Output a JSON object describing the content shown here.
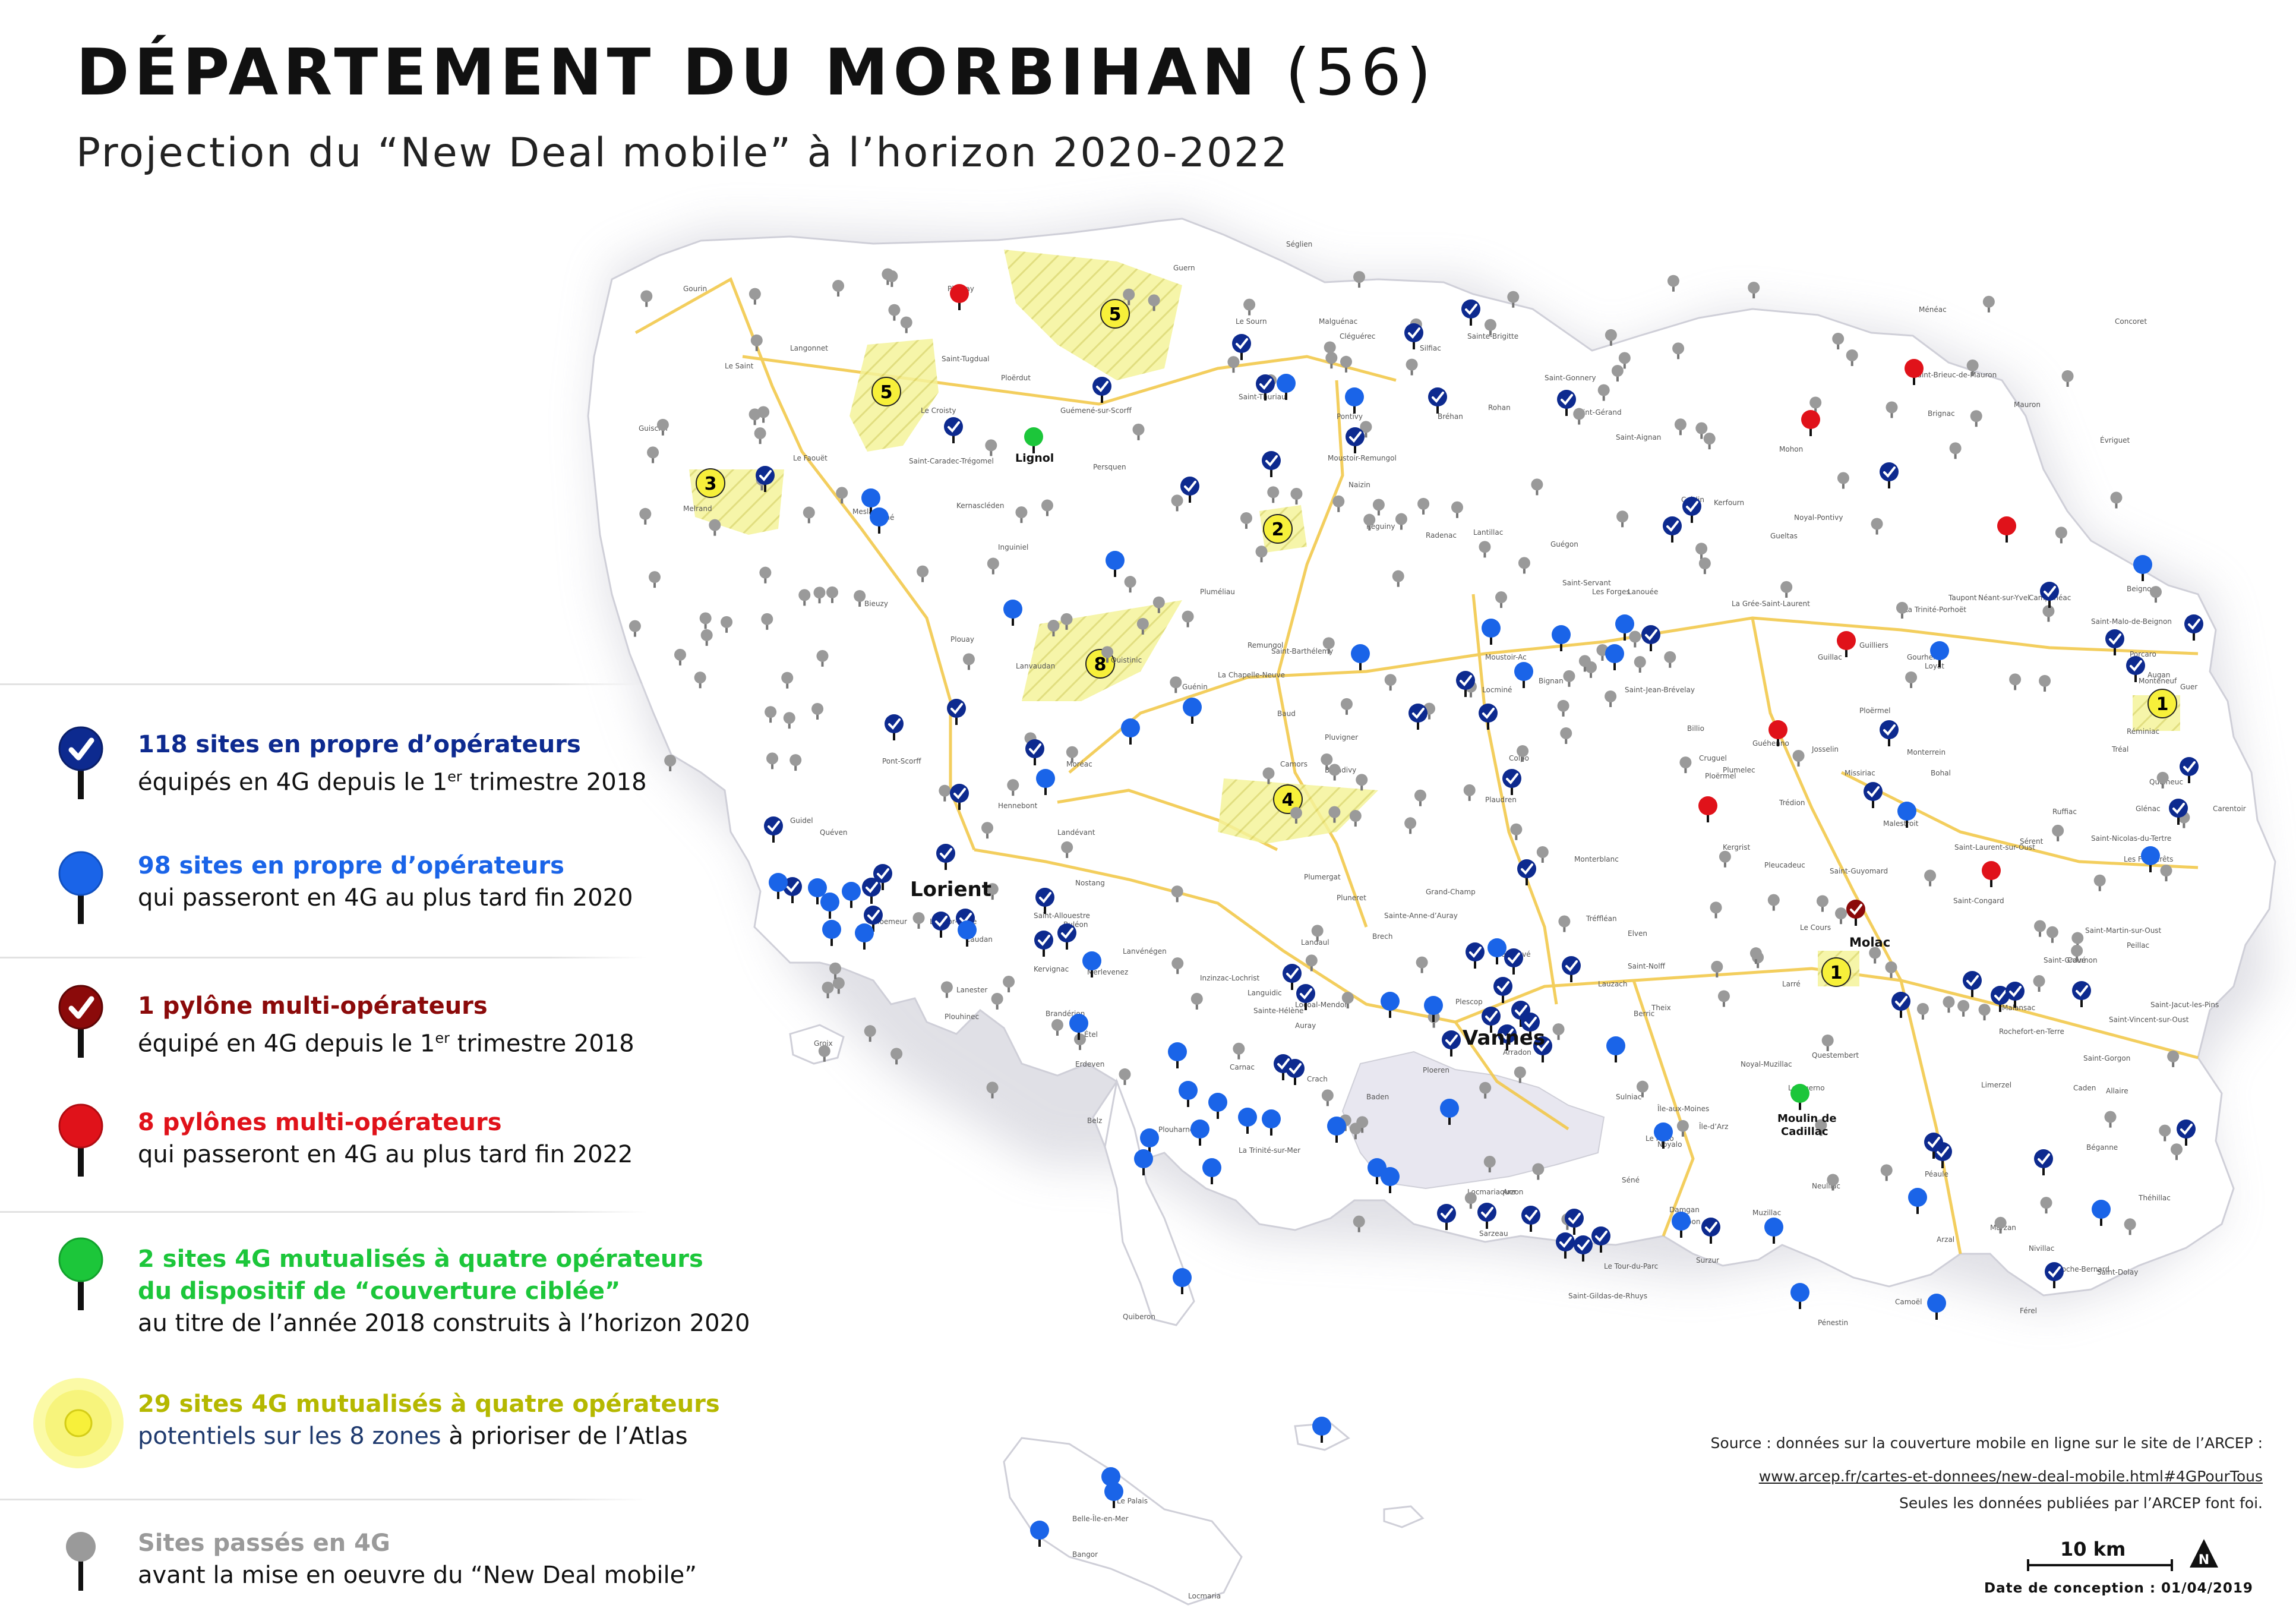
{
  "header": {
    "title_bold": "DÉPARTEMENT DU MORBIHAN",
    "title_num": "(56)",
    "subtitle": "Projection du “New Deal mobile” à l’horizon 2020-2022"
  },
  "legend": [
    {
      "key": "own-4g",
      "color": "#0d2a8f",
      "heading": "118 sites en propre d’opérateurs",
      "line1": "équipés en 4G depuis le 1",
      "sup": "er",
      "line1_end": " trimestre 2018"
    },
    {
      "key": "own-2020",
      "color": "#1a64e8",
      "heading": "98 sites en propre d’opérateurs",
      "line1": "qui passeront en 4G au plus tard fin 2020"
    },
    {
      "key": "multi-4g",
      "color": "#8b0a0a",
      "heading": "1 pylône multi-opérateurs",
      "line1": "équipé en 4G depuis le 1",
      "sup": "er",
      "line1_end": " trimestre 2018"
    },
    {
      "key": "multi-2022",
      "color": "#e0121a",
      "heading": "8 pylônes multi-opérateurs",
      "line1": "qui passeront en 4G au plus tard fin 2022"
    },
    {
      "key": "ciblee",
      "color": "#1cc63a",
      "heading": "2 sites 4G mutualisés à quatre opérateurs",
      "heading2": "du dispositif de “couverture ciblée”",
      "line1": "au titre de l’année 2018 construits à l’horizon 2020"
    },
    {
      "key": "zones",
      "color": "#b5b800",
      "heading": "29 sites 4G mutualisés à quatre opérateurs",
      "line1a": "potentiels sur les 8 zones",
      "line1b": " à prioriser de l’Atlas"
    },
    {
      "key": "passes",
      "color": "#9a9a9a",
      "heading": "Sites passés en 4G",
      "line1": "avant la mise en oeuvre du  “New Deal mobile”"
    }
  ],
  "source": {
    "line1": "Source : données sur la couverture mobile en ligne sur le site de l’ARCEP :",
    "line2": "www.arcep.fr/cartes-et-donnees/new-deal-mobile.html#4GPourTous",
    "line3": "Seules les données publiées par l’ARCEP font foi."
  },
  "scale": "10 km",
  "north": "N",
  "date": "Date de conception : 01/04/2019",
  "cities": {
    "lorient": "Lorient",
    "vannes": "Vannes",
    "lignol": "Lignol",
    "molac": "Molac",
    "cadillac": "Moulin de",
    "cadillac2": "Cadillac"
  },
  "towns": [
    "Gourin",
    "Plouray",
    "Langonnet",
    "Le Saint",
    "Guiscriff",
    "Le Faouët",
    "Meslan",
    "Berné",
    "Saint-Tugdual",
    "Ploërdut",
    "Guémené-sur-Scorff",
    "Le Croisty",
    "Saint-Caradec-Trégomel",
    "Kernascléden",
    "Persquen",
    "Inguiniel",
    "Plouay",
    "Lanvaudan",
    "Quistinic",
    "Pontivy",
    "Locminé",
    "Josselin",
    "Ploërmel",
    "Malestroit",
    "Questembert",
    "Muzillac",
    "Sarzeau",
    "Auray",
    "Hennebont",
    "Quiberon",
    "Belle-Île-en-Mer",
    "Bangor",
    "Le Palais",
    "Locmaria",
    "Groix",
    "Étel",
    "Carnac",
    "La Trinité-sur-Mer",
    "Plouharnel",
    "Baud",
    "Camors",
    "Grand-Champ",
    "Elven",
    "Theix",
    "Sulniac",
    "Saint-Avé",
    "Plescop",
    "Ploeren",
    "Arradon",
    "Baden",
    "Larmor-Plage",
    "Ploemeur",
    "Guidel",
    "Quéven",
    "Pont-Scorff",
    "Caudan",
    "Lanester",
    "Kervignac",
    "Merlevenez",
    "Nostang",
    "Landévant",
    "Brandérion",
    "Plouhinec",
    "Erdeven",
    "Belz",
    "Crach",
    "Locmariaquer",
    "Arzon",
    "Saint-Gildas-de-Rhuys",
    "Le Tour-du-Parc",
    "Damgan",
    "Ambon",
    "Surzur",
    "Noyalo",
    "Le Hézo",
    "Séné",
    "Île-d’Arz",
    "Île-aux-Moines",
    "Larré",
    "Le Cours",
    "Rochefort-en-Terre",
    "Malansac",
    "Péaule",
    "Marzan",
    "Arzal",
    "Férel",
    "Pénestin",
    "Camoël",
    "Nivillac",
    "La Roche-Bernard",
    "Saint-Dolay",
    "Théhillac",
    "Béganne",
    "Allaire",
    "Caden",
    "Limerzel",
    "Saint-Gorgon",
    "Saint-Vincent-sur-Oust",
    "Saint-Jacut-les-Pins",
    "Peillac",
    "Saint-Gravé",
    "Saint-Martin-sur-Oust",
    "Cournon",
    "Glénac",
    "Les Fougerêts",
    "Saint-Nicolas-du-Tertre",
    "Ruffiac",
    "Carentoir",
    "Quelneuc",
    "Tréal",
    "Réminiac",
    "Monteneuf",
    "Porcaro",
    "Augan",
    "Guer",
    "Beignon",
    "Saint-Malo-de-Beignon",
    "Campénéac",
    "Néant-sur-Yvel",
    "Mauron",
    "Saint-Brieuc-de-Mauron",
    "Brignac",
    "Évriguet",
    "Concoret",
    "Ménéac",
    "Mohon",
    "La Trinité-Porhoët",
    "Guilliers",
    "Loyat",
    "Taupont",
    "Gourhel",
    "Guillac",
    "Ploërmel",
    "Monterrein",
    "Missiriac",
    "Bohal",
    "Saint-Guyomard",
    "Pleucadeuc",
    "Saint-Congard",
    "Saint-Laurent-sur-Oust",
    "Sérent",
    "Trédion",
    "Plumelec",
    "Guéhenno",
    "Cruguel",
    "Billio",
    "Saint-Jean-Brévelay",
    "Bignan",
    "Moustoir-Ac",
    "Colpo",
    "Plaudren",
    "Monterblanc",
    "Tréffléan",
    "Saint-Nolff",
    "Lauzach",
    "Berric",
    "Noyal-Muzillac",
    "Le Guerno",
    "Kergrist",
    "Neulliac",
    "Cléguérec",
    "Malguénac",
    "Le Sourn",
    "Saint-Thuriau",
    "Moustoir-Remungol",
    "Naizin",
    "Réguiny",
    "Radenac",
    "Lantillac",
    "Guégon",
    "Saint-Servant",
    "Les Forges",
    "Lanouée",
    "La Grée-Saint-Laurent",
    "Crédin",
    "Kerfourn",
    "Noyal-Pontivy",
    "Gueltas",
    "Rohan",
    "Bréhan",
    "Saint-Gonnery",
    "Saint-Gérand",
    "Saint-Aignan",
    "Sainte-Brigitte",
    "Silfiac",
    "Séglien",
    "Guern",
    "Melrand",
    "Bieuzy",
    "Pluméliau",
    "Remungol",
    "Guénin",
    "Saint-Barthélemy",
    "La Chapelle-Neuve",
    "Pluvigner",
    "Brandivy",
    "Plumergat",
    "Pluneret",
    "Sainte-Anne-d’Auray",
    "Brech",
    "Landaul",
    "Locoal-Mendon",
    "Sainte-Hélène",
    "Languidic",
    "Inzinzac-Lochrist",
    "Lanvénégen",
    "Saint-Allouestre",
    "Buléon",
    "Moréac"
  ]
}
